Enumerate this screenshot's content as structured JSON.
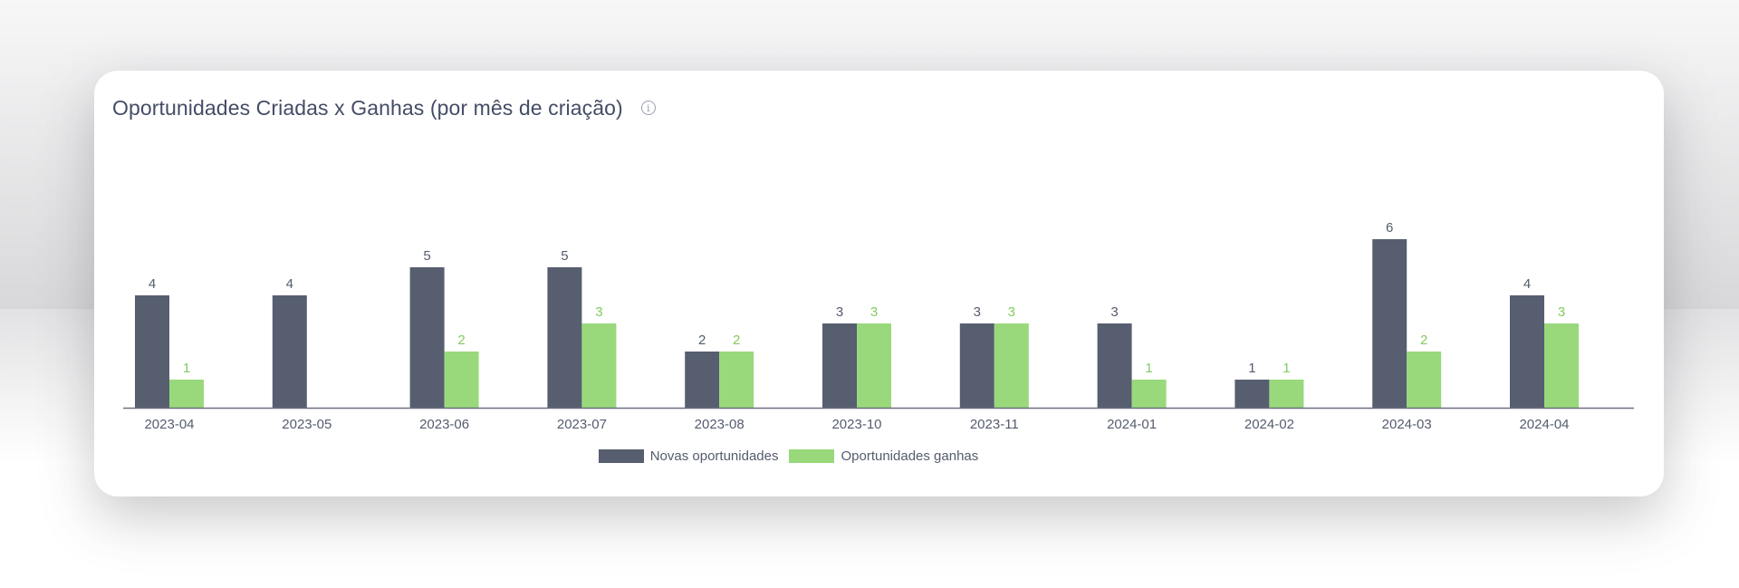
{
  "card": {
    "title": "Oportunidades Criadas x Ganhas (por mês de criação)",
    "info_icon_glyph": "i"
  },
  "colors": {
    "new": "#565e70",
    "won": "#99d97c",
    "axis": "#6b7080",
    "label_new": "#555c6e",
    "label_won": "#82cc5e"
  },
  "chart_data": {
    "type": "bar",
    "title": "Oportunidades Criadas x Ganhas (por mês de criação)",
    "xlabel": "",
    "ylabel": "",
    "ylim": [
      0,
      6
    ],
    "grid": false,
    "legend": "bottom-center",
    "categories": [
      "2023-04",
      "2023-05",
      "2023-06",
      "2023-07",
      "2023-08",
      "2023-10",
      "2023-11",
      "2024-01",
      "2024-02",
      "2024-03",
      "2024-04"
    ],
    "series": [
      {
        "name": "Novas oportunidades",
        "values": [
          4,
          4,
          5,
          5,
          2,
          3,
          3,
          3,
          1,
          6,
          4
        ]
      },
      {
        "name": "Oportunidades ganhas",
        "values": [
          1,
          null,
          2,
          3,
          2,
          3,
          3,
          1,
          1,
          2,
          3
        ]
      }
    ]
  },
  "legend": {
    "items": [
      {
        "label": "Novas oportunidades"
      },
      {
        "label": "Oportunidades ganhas"
      }
    ]
  }
}
